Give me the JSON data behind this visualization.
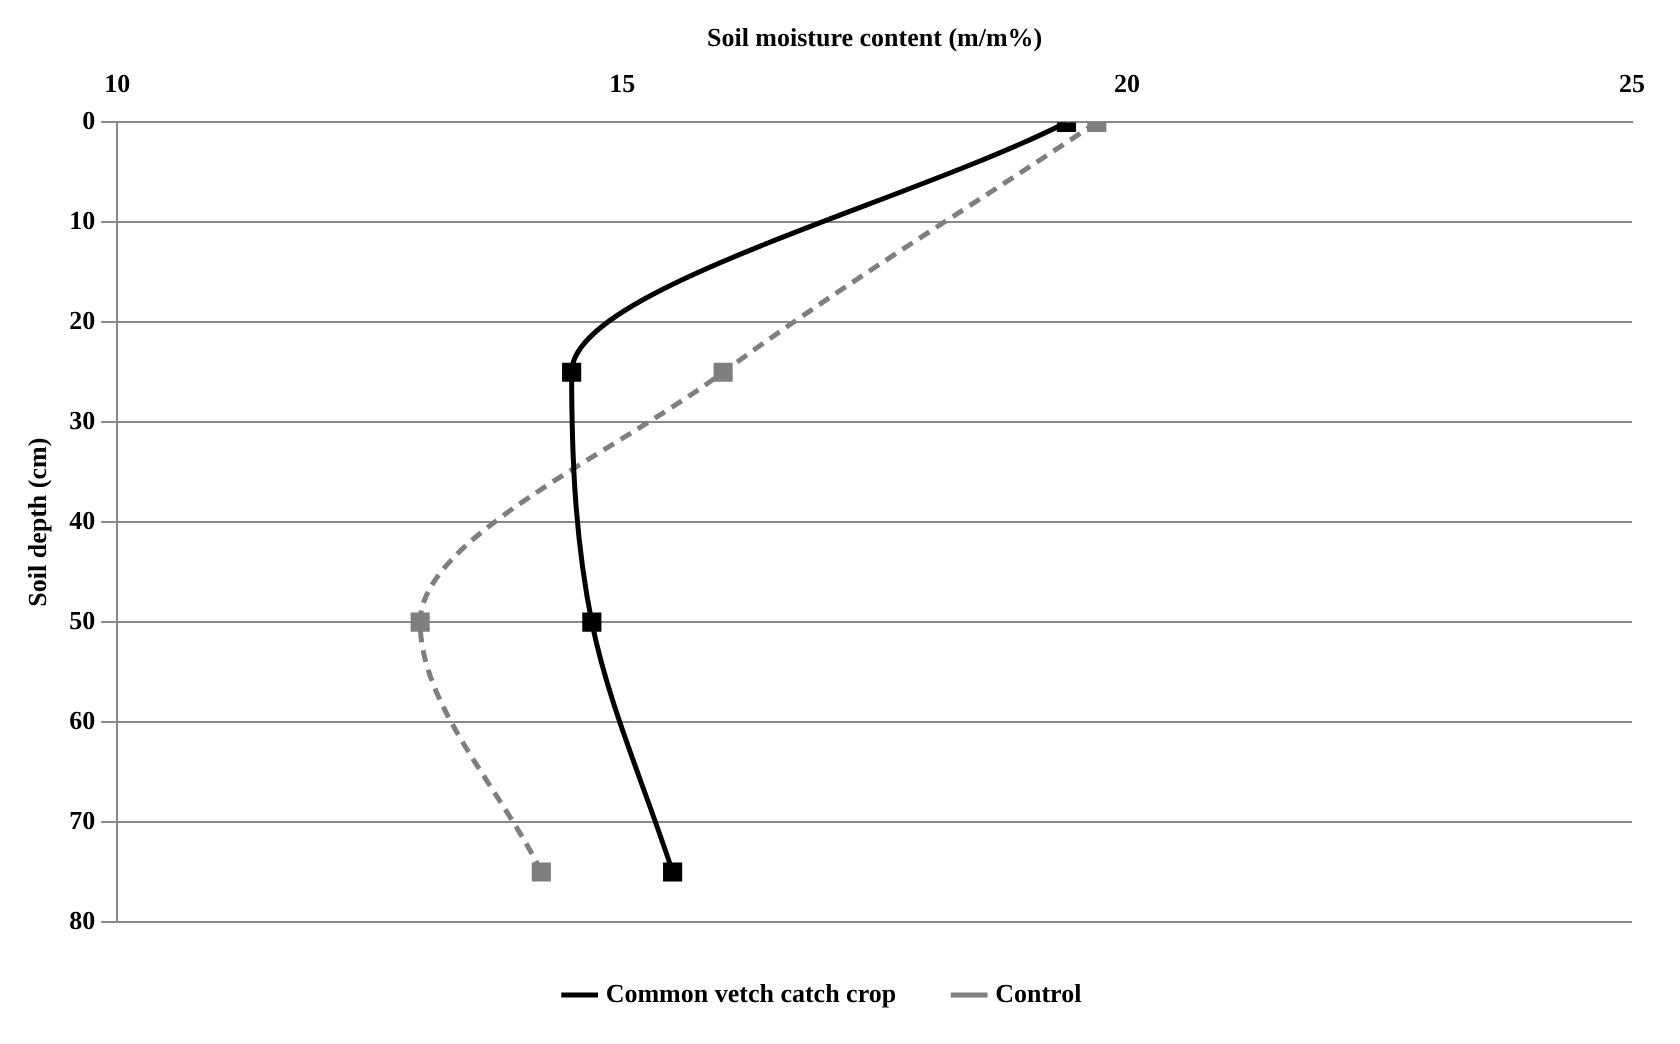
{
  "chart_data": {
    "type": "line",
    "xlabel": "Soil moisture content (m/m%)",
    "ylabel": "Soil depth (cm)",
    "xlim": [
      10,
      25
    ],
    "xticks": [
      10,
      15,
      20,
      25
    ],
    "ylim": [
      80,
      0
    ],
    "yticks": [
      0,
      10,
      20,
      30,
      40,
      50,
      60,
      70,
      80
    ],
    "grid": "y",
    "legend": "bottom",
    "marker": "square",
    "series": [
      {
        "name": "Common vetch catch crop",
        "color": "#000000",
        "line_style": "solid",
        "x": [
          19.4,
          14.5,
          14.7,
          15.5
        ],
        "values": [
          0,
          25,
          50,
          75
        ]
      },
      {
        "name": "Control",
        "color": "#7f7f7f",
        "line_style": "dashed",
        "x": [
          19.7,
          16.0,
          13.0,
          14.2
        ],
        "values": [
          0,
          25,
          50,
          75
        ]
      }
    ]
  }
}
